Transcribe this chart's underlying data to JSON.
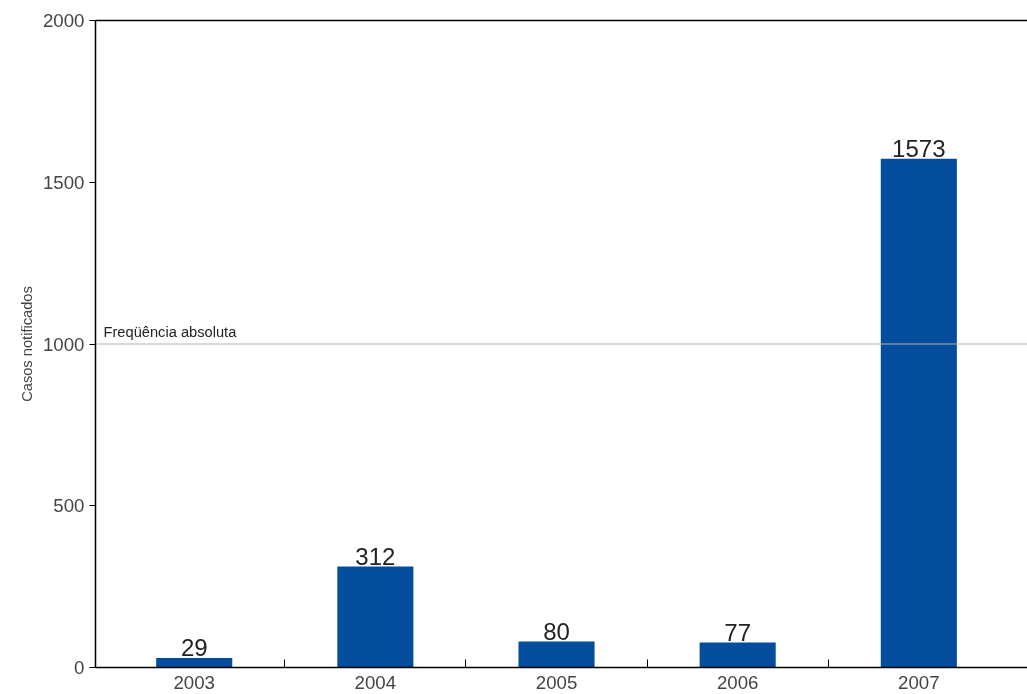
{
  "chart_data": {
    "type": "bar",
    "ylabel": "Casos notificados",
    "categories": [
      "2003",
      "2004",
      "2005",
      "2006",
      "2007"
    ],
    "values": [
      29,
      312,
      80,
      77,
      1573
    ],
    "color": "#034d9c",
    "ylim": [
      0,
      2000
    ],
    "yticks": [
      0,
      500,
      1000,
      1500,
      2000
    ],
    "ref_lines": [
      {
        "axis": "y",
        "value": 1000,
        "label": "Freqüência absoluta",
        "color": "#b4b4b4"
      }
    ],
    "data_labels": true,
    "grid": false
  }
}
